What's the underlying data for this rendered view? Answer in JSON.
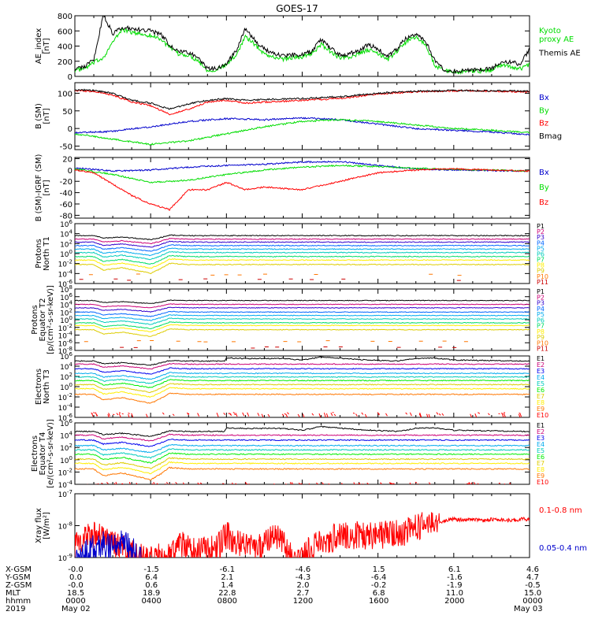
{
  "title": "GOES-17",
  "date": {
    "year": "2019",
    "start": "May 02",
    "end": "May 03"
  },
  "colors": {
    "black": "#000000",
    "red": "#ff0000",
    "green": "#00dd00",
    "blue": "#0000cc",
    "p": [
      "#000000",
      "#cc0077",
      "#3300cc",
      "#0066ff",
      "#00aaee",
      "#00ccbb",
      "#00dd66",
      "#ffee00",
      "#ddcc00",
      "#ff7700",
      "#cc0000"
    ],
    "e": [
      "#000000",
      "#cc0077",
      "#0000ee",
      "#00aaee",
      "#00ccbb",
      "#00ee00",
      "#ddcc00",
      "#ffee00",
      "#ff7700",
      "#ff0000",
      "#cc0000"
    ]
  },
  "chart_data": [
    {
      "type": "line",
      "id": "ae",
      "ylabel": [
        "AE_index",
        "[nT]"
      ],
      "ylim": [
        0,
        800
      ],
      "yticks": [
        "0",
        "200",
        "400",
        "600",
        "800"
      ],
      "series": [
        {
          "name": "Kyoto proxy AE",
          "label_lines": [
            "Kyoto",
            "proxy AE"
          ],
          "color": "#00dd00",
          "x": [
            0,
            0.5,
            1,
            1.5,
            2,
            2.5,
            3,
            3.5,
            4,
            4.5,
            5,
            5.5,
            6,
            6.5,
            7,
            7.5,
            8,
            8.5,
            9,
            9.5,
            10,
            10.5,
            11,
            11.5,
            12,
            12.5,
            13,
            13.5,
            14,
            14.5,
            15,
            15.5,
            16,
            16.5,
            17,
            17.5,
            18,
            18.5,
            19,
            19.5,
            20,
            20.5,
            21,
            21.5,
            22,
            22.5,
            23,
            23.5,
            24
          ],
          "y": [
            80,
            100,
            180,
            250,
            450,
            620,
            580,
            560,
            540,
            500,
            380,
            290,
            280,
            210,
            80,
            90,
            150,
            280,
            530,
            420,
            300,
            250,
            230,
            250,
            260,
            300,
            420,
            330,
            240,
            250,
            300,
            350,
            300,
            220,
            330,
            460,
            520,
            420,
            150,
            70,
            60,
            60,
            70,
            70,
            80,
            150,
            130,
            100,
            160
          ]
        },
        {
          "name": "Themis AE",
          "label_lines": [
            "Themis AE"
          ],
          "color": "#000000",
          "x": [
            0,
            0.5,
            1,
            1.5,
            2,
            2.5,
            3,
            3.5,
            4,
            4.5,
            5,
            5.5,
            6,
            6.5,
            7,
            7.5,
            8,
            8.5,
            9,
            9.5,
            10,
            10.5,
            11,
            11.5,
            12,
            12.5,
            13,
            13.5,
            14,
            14.5,
            15,
            15.5,
            16,
            16.5,
            17,
            17.5,
            18,
            18.5,
            19,
            19.5,
            20,
            20.5,
            21,
            21.5,
            22,
            22.5,
            23,
            23.5,
            24
          ],
          "y": [
            100,
            130,
            220,
            820,
            560,
            650,
            630,
            610,
            600,
            560,
            420,
            330,
            320,
            250,
            100,
            110,
            170,
            330,
            630,
            480,
            360,
            300,
            270,
            280,
            290,
            330,
            480,
            380,
            280,
            300,
            340,
            420,
            360,
            270,
            360,
            510,
            560,
            480,
            200,
            90,
            70,
            70,
            90,
            90,
            100,
            190,
            190,
            160,
            360
          ]
        }
      ]
    },
    {
      "type": "line",
      "id": "bsm",
      "ylabel": [
        "B (SM)",
        "[nT]"
      ],
      "ylim": [
        -60,
        130
      ],
      "yticks": [
        "-50",
        "0",
        "50",
        "100"
      ],
      "series": [
        {
          "name": "Bx",
          "color": "#0000cc",
          "x": [
            0,
            2,
            4,
            6,
            8,
            10,
            12,
            14,
            16,
            18,
            20,
            22,
            24
          ],
          "y": [
            -12,
            -8,
            5,
            20,
            28,
            25,
            30,
            25,
            12,
            0,
            -5,
            -10,
            -18
          ]
        },
        {
          "name": "By",
          "color": "#00dd00",
          "x": [
            0,
            2,
            4,
            6,
            8,
            10,
            12,
            14,
            16,
            18,
            20,
            22,
            24
          ],
          "y": [
            -15,
            -30,
            -45,
            -35,
            -15,
            5,
            20,
            25,
            20,
            10,
            0,
            -5,
            -12
          ]
        },
        {
          "name": "Bz",
          "color": "#ff0000",
          "x": [
            0,
            1,
            2,
            3,
            4,
            5,
            6,
            7,
            8,
            9,
            10,
            12,
            14,
            16,
            18,
            20,
            22,
            24
          ],
          "y": [
            108,
            105,
            95,
            75,
            65,
            40,
            55,
            75,
            80,
            72,
            75,
            80,
            85,
            98,
            104,
            107,
            106,
            104
          ]
        },
        {
          "name": "Bmag",
          "color": "#000000",
          "x": [
            0,
            1,
            2,
            3,
            4,
            5,
            6,
            7,
            8,
            9,
            10,
            12,
            14,
            16,
            18,
            20,
            22,
            24
          ],
          "y": [
            110,
            108,
            100,
            80,
            72,
            55,
            70,
            80,
            85,
            80,
            82,
            85,
            90,
            100,
            106,
            108,
            107,
            106
          ]
        }
      ]
    },
    {
      "type": "line",
      "id": "bigrf",
      "ylabel": [
        "B (SM)-IGRF (SM)",
        "[nT]"
      ],
      "ylim": [
        -85,
        22
      ],
      "yticks": [
        "-80",
        "-60",
        "-40",
        "-20",
        "0",
        "20"
      ],
      "series": [
        {
          "name": "Bx",
          "color": "#0000cc",
          "x": [
            0,
            2,
            4,
            6,
            8,
            10,
            12,
            14,
            16,
            18,
            20,
            22,
            24
          ],
          "y": [
            4,
            -2,
            0,
            5,
            8,
            10,
            14,
            15,
            8,
            2,
            0,
            -1,
            -2
          ]
        },
        {
          "name": "By",
          "color": "#00dd00",
          "x": [
            0,
            2,
            4,
            6,
            8,
            10,
            12,
            14,
            16,
            18,
            20,
            22,
            24
          ],
          "y": [
            2,
            -8,
            -22,
            -18,
            -8,
            0,
            5,
            8,
            6,
            3,
            1,
            0,
            -2
          ]
        },
        {
          "name": "Bz",
          "color": "#ff0000",
          "x": [
            0,
            1,
            2,
            3,
            4,
            5,
            6,
            7,
            8,
            9,
            10,
            12,
            14,
            16,
            18,
            20,
            22,
            24
          ],
          "y": [
            0,
            -5,
            -25,
            -45,
            -60,
            -70,
            -35,
            -35,
            -22,
            -35,
            -30,
            -35,
            -20,
            -5,
            0,
            2,
            0,
            -2
          ]
        }
      ]
    },
    {
      "type": "line",
      "id": "pnorth",
      "ylabel": [
        "Protons",
        "North T1"
      ],
      "log": true,
      "ylim_exp": [
        -6,
        6
      ],
      "tick_exps": [
        -6,
        -4,
        -2,
        0,
        2,
        4,
        6
      ],
      "ytick_base": "10",
      "legend": [
        "P1",
        "P2",
        "P3",
        "P4",
        "P5",
        "P6",
        "P7",
        "P8",
        "P9",
        "P10",
        "P11"
      ],
      "levels": [
        3.6,
        2.9,
        2.3,
        1.6,
        0.9,
        0.2,
        -0.6,
        -1.3,
        -2.2,
        -4.3,
        -5.2
      ]
    },
    {
      "type": "line",
      "id": "pequator",
      "ylabel": [
        "Protons",
        "Equator T2",
        "[p/(cm²-s-sr-keV)]"
      ],
      "log": true,
      "ylim_exp": [
        -8,
        8
      ],
      "tick_exps": [
        -8,
        -6,
        -4,
        -2,
        0,
        2,
        4,
        6,
        8
      ],
      "ytick_base": "10",
      "legend": [
        "P1",
        "P2",
        "P3",
        "P4",
        "P5",
        "P6",
        "P7",
        "P8",
        "P9",
        "P10",
        "P11"
      ],
      "levels": [
        5.0,
        4.0,
        3.1,
        2.0,
        1.1,
        0.2,
        -0.8,
        -1.5,
        -2.6,
        -5.6,
        -7.2
      ]
    },
    {
      "type": "line",
      "id": "enorth",
      "ylabel": [
        "Electrons",
        "North T3"
      ],
      "log": true,
      "ylim_exp": [
        -6,
        6
      ],
      "tick_exps": [
        -6,
        -4,
        -2,
        0,
        2,
        4,
        6
      ],
      "ytick_base": "10",
      "legend": [
        "E1",
        "E2",
        "E3",
        "E4",
        "E5",
        "E6",
        "E7",
        "E8",
        "E9",
        "E10"
      ],
      "levels": [
        5.0,
        4.4,
        3.5,
        2.6,
        1.9,
        1.2,
        0.4,
        -0.4,
        -1.5,
        -5.2
      ]
    },
    {
      "type": "line",
      "id": "eequator",
      "ylabel": [
        "Electrons",
        "Equator T4",
        "[e/(cm²-s-sr-keV)]"
      ],
      "log": true,
      "ylim_exp": [
        -4,
        6
      ],
      "tick_exps": [
        -4,
        -2,
        0,
        2,
        4,
        6
      ],
      "ytick_base": "10",
      "legend": [
        "E1",
        "E2",
        "E3",
        "E4",
        "E5",
        "E6",
        "E7",
        "E8",
        "E9",
        "E10"
      ],
      "levels": [
        4.6,
        4.0,
        3.2,
        2.3,
        1.6,
        0.9,
        0.1,
        -0.6,
        -1.5,
        -3.8
      ]
    },
    {
      "type": "line",
      "id": "xray",
      "ylabel": [
        "Xray flux",
        "[W/m²]"
      ],
      "log": true,
      "ylim_exp": [
        -9,
        -7
      ],
      "tick_exps": [
        -9,
        -8,
        -7
      ],
      "ytick_base": "10",
      "series": [
        {
          "name": "0.1-0.8 nm",
          "color": "#ff0000",
          "x": [
            0,
            1,
            2,
            3,
            3.5,
            4,
            4.5,
            5,
            5.5,
            6,
            6.5,
            7,
            7.5,
            8,
            8.5,
            9,
            9.5,
            10,
            10.5,
            11,
            11.5,
            12,
            12.5,
            13,
            13.5,
            14,
            14.5,
            15,
            15.5,
            16,
            16.5,
            17,
            17.5,
            18,
            18.5,
            19,
            19.5,
            20,
            20.5,
            21,
            21.5,
            22,
            22.5,
            23,
            23.5,
            24
          ],
          "y": [
            -8.6,
            -8.3,
            -8.5,
            -8.9,
            -9.0,
            -9.0,
            -9.0,
            -9.0,
            -8.6,
            -8.7,
            -8.8,
            -8.7,
            -8.7,
            -8.3,
            -8.5,
            -8.6,
            -8.7,
            -8.6,
            -8.3,
            -8.6,
            -9.0,
            -9.0,
            -8.7,
            -8.5,
            -8.4,
            -8.35,
            -8.3,
            -8.3,
            -8.3,
            -8.3,
            -8.25,
            -8.2,
            -8.2,
            -8.1,
            -7.9,
            -7.95,
            -7.85,
            -7.8,
            -7.82,
            -7.8,
            -7.85,
            -7.8,
            -7.8,
            -7.85,
            -7.8,
            -7.8
          ]
        },
        {
          "name": "0.05-0.4 nm",
          "color": "#0000cc",
          "x": [
            0,
            0.5,
            1,
            1.5,
            2,
            2.5,
            3,
            3.5
          ],
          "y": [
            -9.0,
            -8.9,
            -8.7,
            -8.6,
            -8.6,
            -8.5,
            -8.8,
            -9.0
          ]
        }
      ]
    }
  ],
  "axis": {
    "row_labels": [
      "X-GSM",
      "Y-GSM",
      "Z-GSM",
      "MLT",
      "hhmm",
      "2019"
    ],
    "columns": [
      {
        "x": 0,
        "vals": [
          "-0.0",
          "0.0",
          "-0.0",
          "18.5",
          "0000",
          "May 02"
        ]
      },
      {
        "x": 4,
        "vals": [
          "-1.5",
          "6.4",
          "0.6",
          "18.9",
          "0400",
          ""
        ]
      },
      {
        "x": 8,
        "vals": [
          "-6.1",
          "2.1",
          "1.4",
          "22.8",
          "0800",
          ""
        ]
      },
      {
        "x": 12,
        "vals": [
          "-4.6",
          "-4.3",
          "2.0",
          "2.7",
          "1200",
          ""
        ]
      },
      {
        "x": 16,
        "vals": [
          "1.5",
          "-6.4",
          "-0.2",
          "6.8",
          "1600",
          ""
        ]
      },
      {
        "x": 20,
        "vals": [
          "6.1",
          "-1.6",
          "-1.9",
          "11.0",
          "2000",
          ""
        ]
      },
      {
        "x": 24,
        "vals": [
          "4.6",
          "4.7",
          "-0.5",
          "15.0",
          "0000",
          "May 03"
        ]
      }
    ]
  }
}
